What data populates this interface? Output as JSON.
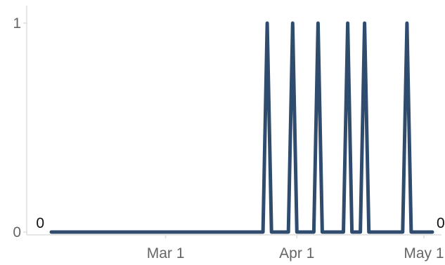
{
  "chart_data": {
    "type": "line",
    "title": "",
    "xlabel": "",
    "ylabel": "",
    "x_tick_labels": [
      "Mar 1",
      "Apr 1",
      "May 1"
    ],
    "y_tick_labels": [
      "0",
      "1"
    ],
    "ylim": [
      0,
      1
    ],
    "xlim": [
      "2019-02-02",
      "2019-05-03"
    ],
    "grid": false,
    "legend": "none",
    "colors": {
      "series": "#2f4b6e",
      "axis": "#dddddd",
      "tick_text": "#666666",
      "data_label": "#111111"
    },
    "series": [
      {
        "x": [
          "2019-02-02",
          "2019-03-24",
          "2019-03-25",
          "2019-03-26",
          "2019-03-30",
          "2019-03-31",
          "2019-04-01",
          "2019-04-05",
          "2019-04-06",
          "2019-04-07",
          "2019-04-12",
          "2019-04-13",
          "2019-04-14",
          "2019-04-16",
          "2019-04-17",
          "2019-04-18",
          "2019-04-26",
          "2019-04-27",
          "2019-04-28",
          "2019-05-03"
        ],
        "y": [
          0,
          0,
          1,
          0,
          0,
          1,
          0,
          0,
          1,
          0,
          0,
          1,
          0,
          0,
          1,
          0,
          0,
          1,
          0,
          0
        ]
      }
    ],
    "data_labels": [
      {
        "text": "0",
        "at": "first"
      },
      {
        "text": "0",
        "at": "last"
      }
    ]
  }
}
